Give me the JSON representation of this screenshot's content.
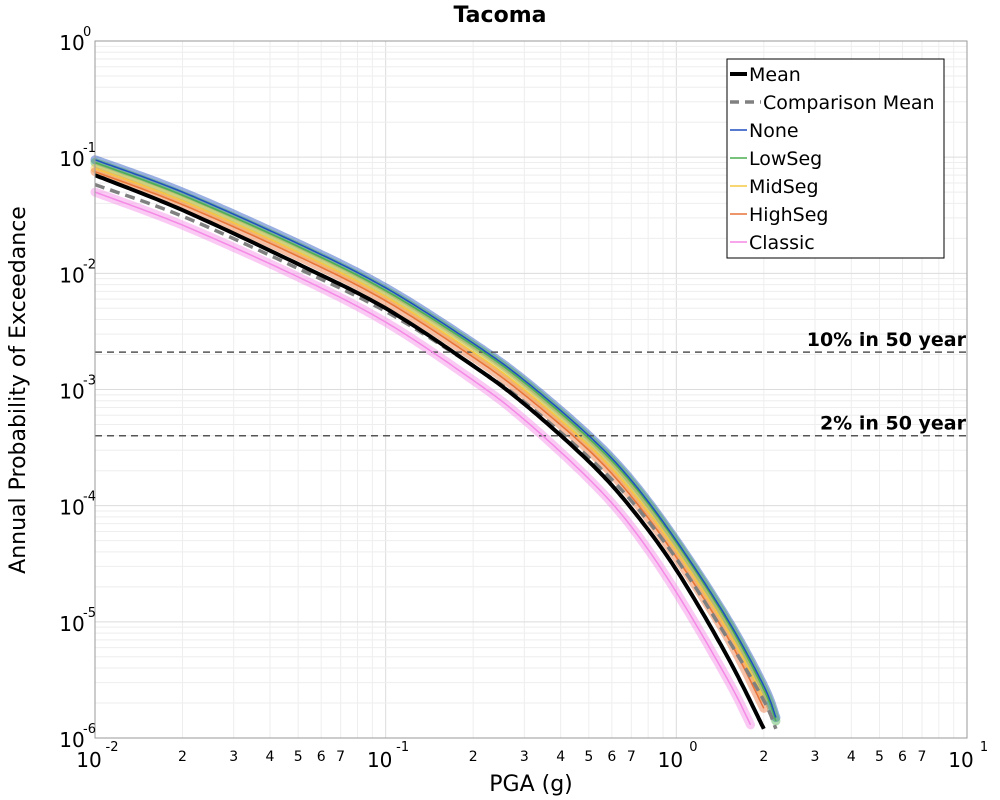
{
  "chart_data": {
    "type": "line",
    "title": "Tacoma",
    "xlabel": "PGA (g)",
    "ylabel": "Annual Probability of Exceedance",
    "x_scale": "log",
    "y_scale": "log",
    "xlim": [
      0.01,
      10
    ],
    "ylim": [
      1e-06,
      1
    ],
    "grid": true,
    "legend_position": "top-right",
    "x_major_ticks": [
      {
        "base": "10",
        "exp": "-2"
      },
      {
        "base": "10",
        "exp": "-1"
      },
      {
        "base": "10",
        "exp": "0"
      },
      {
        "base": "10",
        "exp": "1"
      }
    ],
    "x_minor_tick_labels": [
      "2",
      "3",
      "4",
      "5",
      "6",
      "7"
    ],
    "y_major_ticks": [
      {
        "base": "10",
        "exp": "0"
      },
      {
        "base": "10",
        "exp": "-1"
      },
      {
        "base": "10",
        "exp": "-2"
      },
      {
        "base": "10",
        "exp": "-3"
      },
      {
        "base": "10",
        "exp": "-4"
      },
      {
        "base": "10",
        "exp": "-5"
      },
      {
        "base": "10",
        "exp": "-6"
      }
    ],
    "reference_lines": [
      {
        "label": "10% in 50 year",
        "y": 0.0021
      },
      {
        "label": "2% in 50 year",
        "y": 0.0004
      }
    ],
    "series": [
      {
        "name": "Mean",
        "color": "#000000",
        "style": "solid",
        "x": [
          0.01,
          0.02,
          0.05,
          0.1,
          0.2,
          0.3,
          0.5,
          0.7,
          1.0,
          1.5,
          2.0
        ],
        "y": [
          0.07,
          0.035,
          0.012,
          0.005,
          0.0016,
          0.00075,
          0.00024,
          9.5e-05,
          2.8e-05,
          5e-06,
          1.2e-06
        ]
      },
      {
        "name": "Comparison Mean",
        "color": "#808080",
        "style": "dashed",
        "x": [
          0.01,
          0.02,
          0.05,
          0.1,
          0.2,
          0.3,
          0.5,
          0.7,
          1.0,
          1.5,
          2.0,
          2.2
        ],
        "y": [
          0.058,
          0.031,
          0.011,
          0.0047,
          0.0016,
          0.00078,
          0.00026,
          0.00011,
          3.5e-05,
          7.2e-06,
          2.1e-06,
          1.2e-06
        ]
      },
      {
        "name": "None",
        "color": "#1f4fbf",
        "style": "solid",
        "x": [
          0.01,
          0.02,
          0.05,
          0.1,
          0.2,
          0.3,
          0.5,
          0.7,
          1.0,
          1.5,
          2.0,
          2.2
        ],
        "y": [
          0.095,
          0.05,
          0.018,
          0.0075,
          0.0025,
          0.0012,
          0.0004,
          0.000165,
          5e-05,
          1.05e-05,
          2.8e-06,
          1.5e-06
        ]
      },
      {
        "name": "LowSeg",
        "color": "#4caf50",
        "style": "solid",
        "x": [
          0.01,
          0.02,
          0.05,
          0.1,
          0.2,
          0.3,
          0.5,
          0.7,
          1.0,
          1.5,
          2.0,
          2.2
        ],
        "y": [
          0.09,
          0.047,
          0.017,
          0.0071,
          0.0024,
          0.00115,
          0.00038,
          0.000158,
          4.8e-05,
          1e-05,
          2.6e-06,
          1.4e-06
        ]
      },
      {
        "name": "MidSeg",
        "color": "#f5c842",
        "style": "solid",
        "x": [
          0.01,
          0.02,
          0.05,
          0.1,
          0.2,
          0.3,
          0.5,
          0.7,
          1.0,
          1.5,
          2.0
        ],
        "y": [
          0.08,
          0.042,
          0.0152,
          0.0063,
          0.0021,
          0.001,
          0.00033,
          0.000135,
          4.1e-05,
          8.5e-06,
          2.2e-06
        ]
      },
      {
        "name": "HighSeg",
        "color": "#e8733a",
        "style": "solid",
        "x": [
          0.01,
          0.02,
          0.05,
          0.1,
          0.2,
          0.3,
          0.5,
          0.7,
          1.0,
          1.5,
          2.0
        ],
        "y": [
          0.075,
          0.039,
          0.014,
          0.0058,
          0.0019,
          0.0009,
          0.0003,
          0.00012,
          3.6e-05,
          7.4e-06,
          1.8e-06
        ]
      },
      {
        "name": "Classic",
        "color": "#f589e6",
        "style": "solid",
        "x": [
          0.01,
          0.02,
          0.05,
          0.1,
          0.2,
          0.3,
          0.5,
          0.7,
          1.0,
          1.5,
          1.8
        ],
        "y": [
          0.05,
          0.026,
          0.0093,
          0.0038,
          0.0012,
          0.00055,
          0.00017,
          6.6e-05,
          1.8e-05,
          3.2e-06,
          1.3e-06
        ]
      }
    ]
  }
}
